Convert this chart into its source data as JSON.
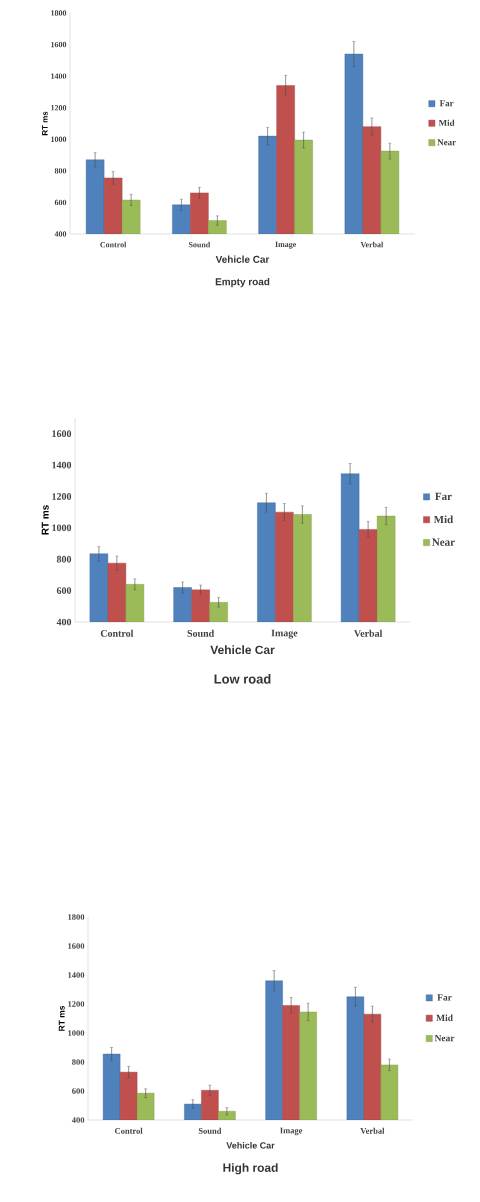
{
  "chart_data": [
    {
      "type": "bar",
      "title": "Empty road",
      "xlabel": "Vehicle Car",
      "ylabel": "RT ms",
      "categories": [
        "Control",
        "Sound",
        "Image",
        "Verbal"
      ],
      "ylim": [
        400,
        1800
      ],
      "yticks": [
        400,
        600,
        800,
        1000,
        1200,
        1400,
        1600,
        1800
      ],
      "legend": "right",
      "series": [
        {
          "name": "Far",
          "color": "#4f81bd",
          "values": [
            870,
            585,
            1020,
            1540
          ],
          "errors": [
            45,
            35,
            55,
            80
          ]
        },
        {
          "name": "Mid",
          "color": "#c0504d",
          "values": [
            755,
            660,
            1340,
            1080
          ],
          "errors": [
            40,
            35,
            65,
            55
          ]
        },
        {
          "name": "Near",
          "color": "#9bbb59",
          "values": [
            615,
            485,
            995,
            925
          ],
          "errors": [
            35,
            30,
            50,
            50
          ]
        }
      ]
    },
    {
      "type": "bar",
      "title": "Low road",
      "xlabel": "Vehicle Car",
      "ylabel": "RT ms",
      "categories": [
        "Control",
        "Sound",
        "Image",
        "Verbal"
      ],
      "ylim": [
        400,
        1700
      ],
      "yticks": [
        400,
        600,
        800,
        1000,
        1200,
        1400,
        1600
      ],
      "legend": "right",
      "series": [
        {
          "name": "Far",
          "color": "#4f81bd",
          "values": [
            835,
            620,
            1160,
            1345
          ],
          "errors": [
            45,
            35,
            60,
            65
          ]
        },
        {
          "name": "Mid",
          "color": "#c0504d",
          "values": [
            775,
            605,
            1100,
            990
          ],
          "errors": [
            45,
            30,
            55,
            50
          ]
        },
        {
          "name": "Near",
          "color": "#9bbb59",
          "values": [
            640,
            525,
            1085,
            1075
          ],
          "errors": [
            35,
            30,
            55,
            55
          ]
        }
      ]
    },
    {
      "type": "bar",
      "title": "High road",
      "xlabel": "Vehicle Car",
      "ylabel": "RT ms",
      "categories": [
        "Control",
        "Sound",
        "Image",
        "Verbal"
      ],
      "ylim": [
        400,
        1800
      ],
      "yticks": [
        400,
        600,
        800,
        1000,
        1200,
        1400,
        1600,
        1800
      ],
      "legend": "right",
      "series": [
        {
          "name": "Far",
          "color": "#4f81bd",
          "values": [
            855,
            510,
            1360,
            1250
          ],
          "errors": [
            45,
            30,
            70,
            65
          ]
        },
        {
          "name": "Mid",
          "color": "#c0504d",
          "values": [
            730,
            605,
            1190,
            1130
          ],
          "errors": [
            40,
            35,
            55,
            55
          ]
        },
        {
          "name": "Near",
          "color": "#9bbb59",
          "values": [
            585,
            460,
            1145,
            780
          ],
          "errors": [
            30,
            25,
            60,
            40
          ]
        }
      ]
    }
  ]
}
